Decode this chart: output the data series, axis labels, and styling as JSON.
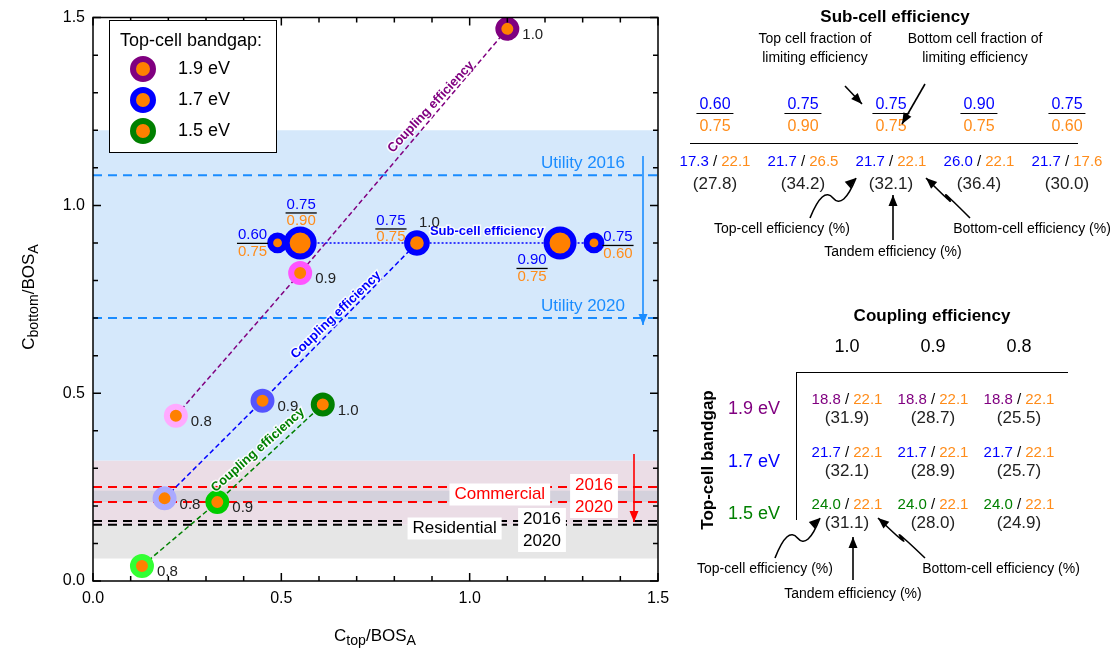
{
  "chart_data": [
    {
      "type": "line",
      "xlabel": "C$_{top}$/BOS$_{A}$",
      "ylabel": "C$_{bottom}$/BOS$_{A}$",
      "legend_title": "Top-cell bandgap:",
      "legend": "top left",
      "marker": "circle",
      "line_style": "dashed",
      "grid": false,
      "xlim": [
        0,
        1.5
      ],
      "ylim": [
        0,
        1.5
      ],
      "xticks": [
        {
          "value": 0,
          "label": "0.0"
        },
        {
          "value": 0.1,
          "label": null
        },
        {
          "value": 0.2,
          "label": null
        },
        {
          "value": 0.3,
          "label": null
        },
        {
          "value": 0.4,
          "label": null
        },
        {
          "value": 0.5,
          "label": "0.5"
        },
        {
          "value": 0.6,
          "label": null
        },
        {
          "value": 0.7,
          "label": null
        },
        {
          "value": 0.8,
          "label": null
        },
        {
          "value": 0.9,
          "label": null
        },
        {
          "value": 1,
          "label": "1.0"
        },
        {
          "value": 1.1,
          "label": null
        },
        {
          "value": 1.2,
          "label": null
        },
        {
          "value": 1.3,
          "label": null
        },
        {
          "value": 1.4,
          "label": null
        },
        {
          "value": 1.5,
          "label": "1.5"
        }
      ],
      "yticks": [
        {
          "value": 0,
          "label": "0.0"
        },
        {
          "value": 0.1,
          "label": null
        },
        {
          "value": 0.2,
          "label": null
        },
        {
          "value": 0.3,
          "label": null
        },
        {
          "value": 0.4,
          "label": null
        },
        {
          "value": 0.5,
          "label": "0.5"
        },
        {
          "value": 0.6,
          "label": null
        },
        {
          "value": 0.7,
          "label": null
        },
        {
          "value": 0.8,
          "label": null
        },
        {
          "value": 0.9,
          "label": null
        },
        {
          "value": 1,
          "label": "1.0"
        },
        {
          "value": 1.1,
          "label": null
        },
        {
          "value": 1.2,
          "label": null
        },
        {
          "value": 1.3,
          "label": null
        },
        {
          "value": 1.4,
          "label": null
        },
        {
          "value": 1.5,
          "label": "1.5"
        }
      ],
      "series": [
        {
          "name": "1.9 eV",
          "color": "#800080",
          "colors": [
            "#ffaaff",
            "#ff55ff",
            "#800080"
          ],
          "x": [
            0.22,
            0.55,
            1.1
          ],
          "values": [
            0.44,
            0.82,
            1.47
          ]
        },
        {
          "name": "1.7 eV",
          "color": "#0000ff",
          "colors": [
            "#aaaaff",
            "#5555ff",
            "#0000ff"
          ],
          "x": [
            0.19,
            0.45,
            0.86
          ],
          "values": [
            0.22,
            0.48,
            0.9
          ]
        },
        {
          "name": "1.5 eV",
          "color": "#008000",
          "colors": [
            "#33ff33",
            "#00cc00",
            "#008000"
          ],
          "x": [
            0.13,
            0.33,
            0.61
          ],
          "values": [
            0.04,
            0.21,
            0.47
          ]
        },
        {
          "type": "bubble",
          "color": "#0000ff",
          "line_style": "dotted",
          "x": [
            0.49,
            0.55,
            0.86,
            1.24,
            1.33
          ],
          "values": [
            0.9,
            0.9,
            0.9,
            0.9,
            0.9
          ],
          "sizes": [
            0.3,
            1,
            0.53,
            1,
            0.3
          ]
        }
      ],
      "bands": [
        {
          "axis": "y",
          "from": 0.32,
          "to": 1.2,
          "color": "#d5e8fb"
        },
        {
          "axis": "y",
          "from": 0.15,
          "to": 0.32,
          "color": "#ebdde6"
        },
        {
          "axis": "y",
          "from": 0.06,
          "to": 0.15,
          "color": "#e6e6e6"
        },
        {
          "axis": "y",
          "from": 0.21,
          "to": 0.24,
          "color": "#d4d1dc"
        }
      ],
      "ref_lines": [
        {
          "axis": "y",
          "value": 1.08,
          "label": "Utility 2016",
          "color": "#1a8cff",
          "line_style": "dashed"
        },
        {
          "axis": "y",
          "value": 0.7,
          "label": "Utility 2020",
          "color": "#1a8cff",
          "line_style": "dashed"
        },
        {
          "axis": "y",
          "value": 0.25,
          "color": "#ff0000",
          "line_style": "dashed"
        },
        {
          "axis": "y",
          "value": 0.21,
          "color": "#ff0000",
          "line_style": "dashed"
        },
        {
          "axis": "y",
          "value": 0.16,
          "color": "#000000",
          "line_style": "dashed"
        },
        {
          "axis": "y",
          "value": 0.15,
          "color": "#000000",
          "line_style": "dashed"
        }
      ],
      "annotations": [
        "Coupling efficiency",
        "Coupling efficiency",
        "Coupling efficiency",
        "Sub-cell efficiency",
        {
          "text": "Commercial",
          "x": 1.08,
          "y": 0.23
        },
        {
          "text": "Residential",
          "x": 0.96,
          "y": 0.14
        },
        "2016",
        "2020",
        "2016",
        "2020",
        {
          "text": "0.8",
          "x": 0.22,
          "y": 0.44
        },
        {
          "text": "0.9",
          "x": 0.55,
          "y": 0.82
        },
        {
          "text": "1.0",
          "x": 1.1,
          "y": 1.47
        },
        {
          "text": "0.8",
          "x": 0.19,
          "y": 0.22
        },
        {
          "text": "0.9",
          "x": 0.45,
          "y": 0.48
        },
        {
          "text": "1.0",
          "x": 0.86,
          "y": 0.9
        },
        {
          "text": "0.8",
          "x": 0.13,
          "y": 0.04
        },
        {
          "text": "0.9",
          "x": 0.33,
          "y": 0.21
        },
        {
          "text": "1.0",
          "x": 0.61,
          "y": 0.47
        },
        {
          "text": "0.60",
          "x": 0.49,
          "y": 0.9
        },
        {
          "text": "0.75",
          "x": 0.49,
          "y": 0.9
        },
        {
          "text": "0.75",
          "x": 0.55,
          "y": 0.9
        },
        {
          "text": "0.90",
          "x": 0.55,
          "y": 0.9
        },
        {
          "text": "0.75",
          "x": 0.86,
          "y": 0.9
        },
        {
          "text": "0.75",
          "x": 0.86,
          "y": 0.9
        },
        {
          "text": "0.90",
          "x": 1.24,
          "y": 0.9
        },
        {
          "text": "0.75",
          "x": 1.24,
          "y": 0.9
        },
        {
          "text": "0.75",
          "x": 1.33,
          "y": 0.9
        },
        {
          "text": "0.60",
          "x": 1.33,
          "y": 0.9
        }
      ]
    },
    {
      "type": "other",
      "title": "Sub-cell efficiency",
      "annotations": [
        "0.60",
        "0.75",
        "0.75",
        "0.90",
        "0.75",
        "0.75",
        "0.90",
        "0.75",
        "0.75",
        "0.60",
        "17.3 / 22.1",
        "21.7 / 26.5",
        "21.7 / 22.1",
        "26.0 / 22.1",
        "21.7 / 17.6",
        "(27.8)",
        "(34.2)",
        "(32.1)",
        "(36.4)",
        "(30.0)",
        "Top cell fraction of limiting efficiency",
        "Bottom cell fraction of limiting efficiency",
        "Top-cell efficiency (%)",
        "Tandem efficiency (%)",
        "Bottom-cell efficiency (%)"
      ]
    },
    {
      "type": "other",
      "title": "Coupling efficiency",
      "annotations": [
        "1.0",
        "0.9",
        "0.8",
        "1.9 eV",
        "1.7 eV",
        "1.5 eV",
        "Top-cell bandgap",
        "18.8 / 22.1",
        "18.8 / 22.1",
        "18.8 / 22.1",
        "21.7 / 22.1",
        "21.7 / 22.1",
        "21.7 / 22.1",
        "24.0 / 22.1",
        "24.0 / 22.1",
        "24.0 / 22.1",
        "(31.9)",
        "(28.7)",
        "(25.5)",
        "(32.1)",
        "(28.9)",
        "(25.7)",
        "(31.1)",
        "(28.0)",
        "(24.9)",
        "Top-cell efficiency (%)",
        "Tandem efficiency (%)",
        "Bottom-cell efficiency (%)"
      ]
    }
  ]
}
